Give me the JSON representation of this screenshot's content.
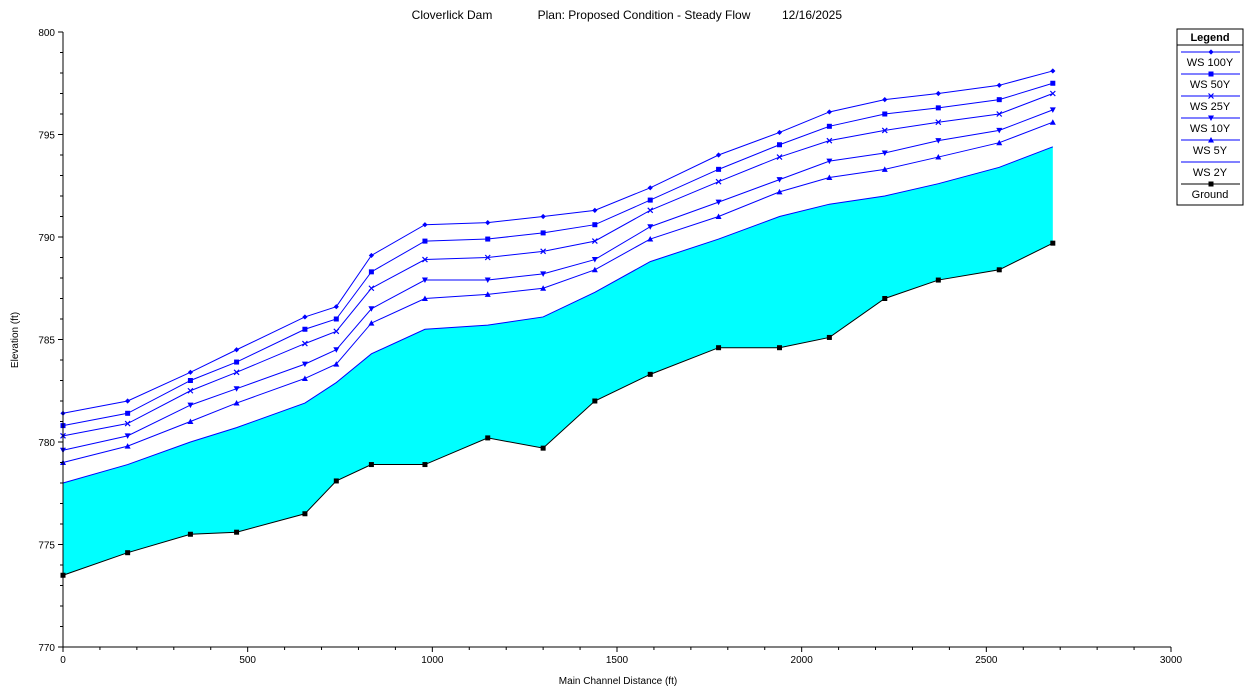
{
  "chart_data": {
    "type": "line",
    "title_parts": [
      "Cloverlick Dam",
      "Plan: Proposed Condition - Steady Flow",
      "12/16/2025"
    ],
    "xlabel": "Main Channel Distance (ft)",
    "ylabel": "Elevation (ft)",
    "xlim": [
      0,
      3000
    ],
    "ylim": [
      770,
      800
    ],
    "xticks": [
      0,
      500,
      1000,
      1500,
      2000,
      2500,
      3000
    ],
    "yticks": [
      770,
      775,
      780,
      785,
      790,
      795,
      800
    ],
    "grid": false,
    "legend_title": "Legend",
    "legend_position": "top-right",
    "x": [
      0,
      175,
      345,
      470,
      655,
      740,
      835,
      980,
      1150,
      1300,
      1440,
      1590,
      1775,
      1940,
      2075,
      2225,
      2370,
      2535,
      2680
    ],
    "series": [
      {
        "name": "WS  100Y",
        "marker": "diamond",
        "color": "#0000ff",
        "values": [
          781.4,
          782.0,
          783.4,
          784.5,
          786.1,
          786.6,
          789.1,
          790.6,
          790.7,
          791.0,
          791.3,
          792.4,
          794.0,
          795.1,
          796.1,
          796.7,
          797.0,
          797.4,
          798.1
        ]
      },
      {
        "name": "WS  50Y",
        "marker": "square",
        "color": "#0000ff",
        "values": [
          780.8,
          781.4,
          783.0,
          783.9,
          785.5,
          786.0,
          788.3,
          789.8,
          789.9,
          790.2,
          790.6,
          791.8,
          793.3,
          794.5,
          795.4,
          796.0,
          796.3,
          796.7,
          797.5
        ]
      },
      {
        "name": "WS  25Y",
        "marker": "x",
        "color": "#0000ff",
        "values": [
          780.3,
          780.9,
          782.5,
          783.4,
          784.8,
          785.4,
          787.5,
          788.9,
          789.0,
          789.3,
          789.8,
          791.3,
          792.7,
          793.9,
          794.7,
          795.2,
          795.6,
          796.0,
          797.0
        ]
      },
      {
        "name": "WS  10Y",
        "marker": "triangle-down",
        "color": "#0000ff",
        "values": [
          779.6,
          780.3,
          781.8,
          782.6,
          783.8,
          784.5,
          786.5,
          787.9,
          787.9,
          788.2,
          788.9,
          790.5,
          791.7,
          792.8,
          793.7,
          794.1,
          794.7,
          795.2,
          796.2
        ]
      },
      {
        "name": "WS  5Y",
        "marker": "triangle-up",
        "color": "#0000ff",
        "values": [
          779.0,
          779.8,
          781.0,
          781.9,
          783.1,
          783.8,
          785.8,
          787.0,
          787.2,
          787.5,
          788.4,
          789.9,
          791.0,
          792.2,
          792.9,
          793.3,
          793.9,
          794.6,
          795.6
        ]
      },
      {
        "name": "WS  2Y",
        "marker": "none",
        "color": "#0000ff",
        "fill": "#00ffff",
        "values": [
          778.0,
          778.9,
          780.0,
          780.7,
          781.9,
          782.9,
          784.3,
          785.5,
          785.7,
          786.1,
          787.3,
          788.8,
          789.9,
          791.0,
          791.6,
          792.0,
          792.6,
          793.4,
          794.4
        ]
      },
      {
        "name": "Ground",
        "marker": "square-filled",
        "color": "#000000",
        "values": [
          773.5,
          774.6,
          775.5,
          775.6,
          776.5,
          778.1,
          778.9,
          778.9,
          780.2,
          779.7,
          782.0,
          783.3,
          784.6,
          784.6,
          785.1,
          787.0,
          787.9,
          788.4,
          789.7
        ]
      }
    ]
  }
}
